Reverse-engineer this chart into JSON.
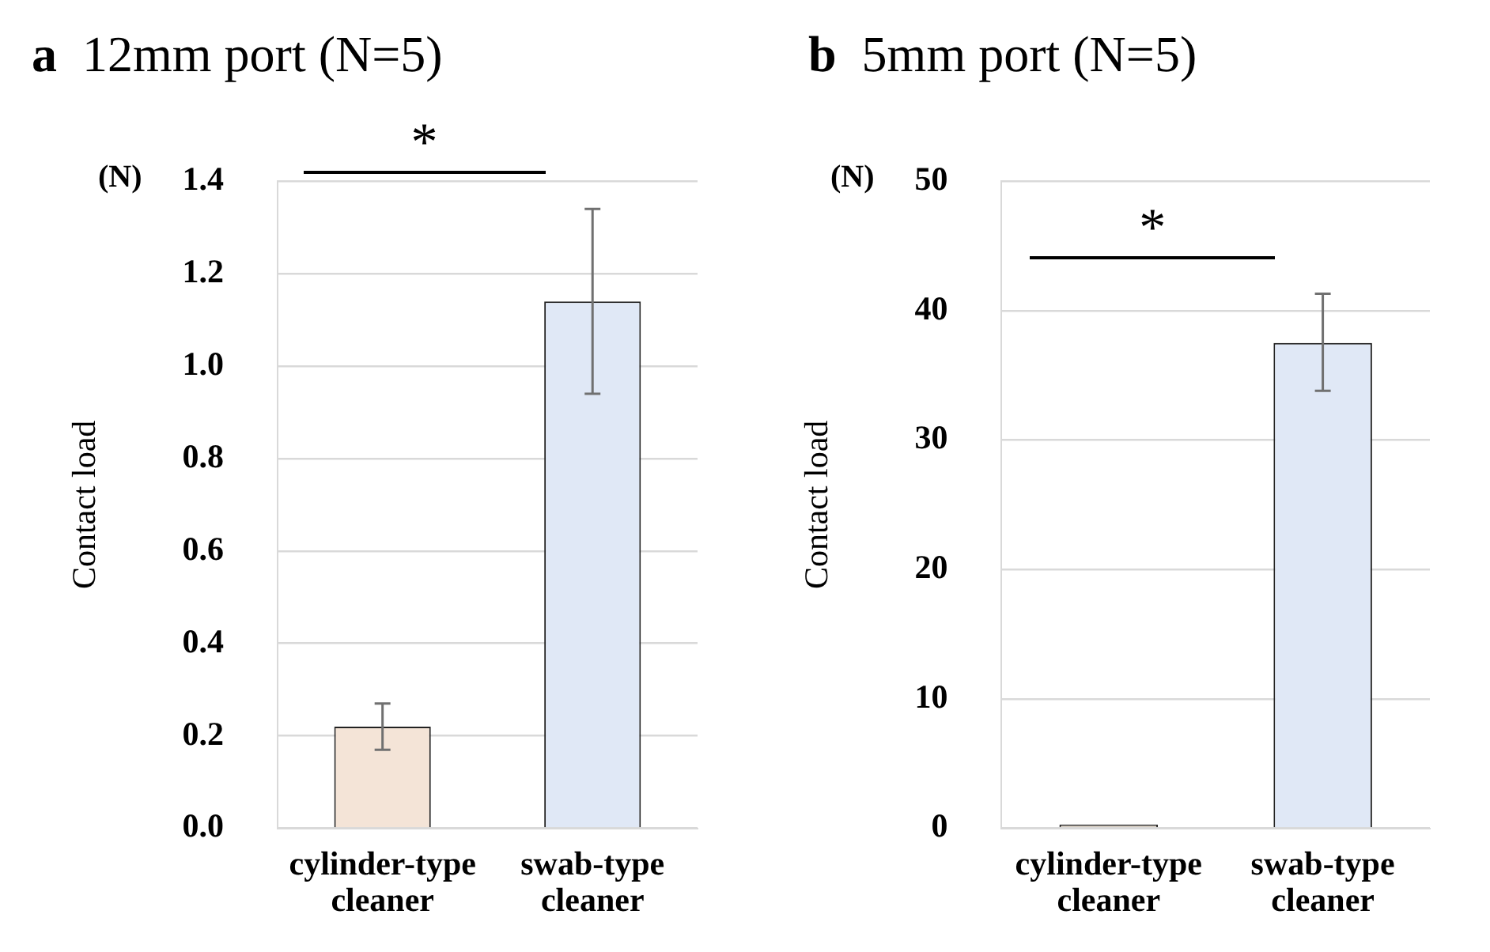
{
  "chart_data": [
    {
      "type": "bar",
      "title": "a 12mm port (N=5)",
      "ylabel": "Contact load",
      "annotations": [
        "(N)",
        "*"
      ],
      "categories": [
        "cylinder-type cleaner",
        "swab-type cleaner"
      ],
      "values": [
        0.22,
        1.14
      ],
      "colors": [
        "#f4e4d7",
        "#e0e8f6"
      ],
      "errors": [
        [
          0.17,
          0.27
        ],
        [
          0.94,
          1.34
        ]
      ],
      "ylim": [
        0,
        1.4
      ],
      "yticks": [
        {
          "value": 0,
          "label": "0.0"
        },
        {
          "value": 0.2,
          "label": "0.2"
        },
        {
          "value": 0.4,
          "label": "0.4"
        },
        {
          "value": 0.6,
          "label": "0.6"
        },
        {
          "value": 0.8,
          "label": "0.8"
        },
        {
          "value": 1.0,
          "label": "1.0"
        },
        {
          "value": 1.2,
          "label": "1.2"
        },
        {
          "value": 1.4,
          "label": "1.4"
        }
      ],
      "grid": "y"
    },
    {
      "type": "bar",
      "title": "b 5mm port (N=5)",
      "ylabel": "Contact load",
      "annotations": [
        "(N)",
        "*"
      ],
      "categories": [
        "cylinder-type cleaner",
        "swab-type cleaner"
      ],
      "values": [
        0.3,
        37.5
      ],
      "colors": [
        "#d9d0c4",
        "#e0e8f6"
      ],
      "errors": [
        null,
        [
          33.8,
          41.3
        ]
      ],
      "ylim": [
        0,
        50
      ],
      "yticks": [
        0,
        10,
        20,
        30,
        40,
        50
      ],
      "grid": "y"
    }
  ]
}
